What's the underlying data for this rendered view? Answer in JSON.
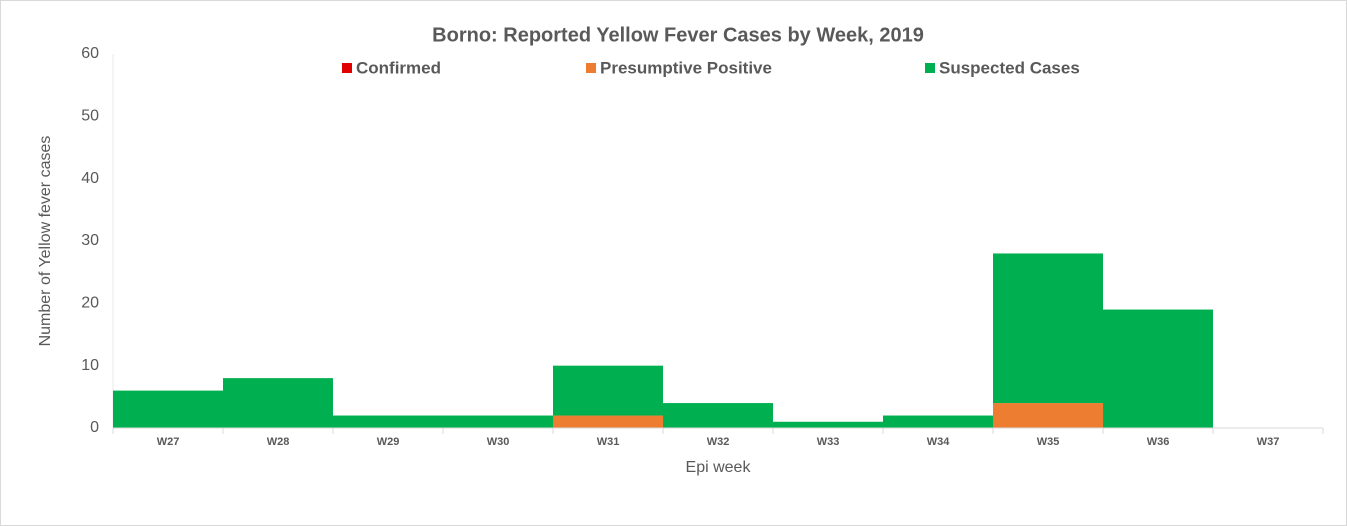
{
  "chart_data": {
    "type": "bar",
    "stacked": true,
    "title": "Borno: Reported Yellow Fever Cases by Week, 2019",
    "x_label": "Epi week",
    "y_label": "Number of Yellow fever cases",
    "categories": [
      "W27",
      "W28",
      "W29",
      "W30",
      "W31",
      "W32",
      "W33",
      "W34",
      "W35",
      "W36",
      "W37"
    ],
    "series": [
      {
        "name": "Confirmed",
        "color": "#e00000",
        "values": [
          0,
          0,
          0,
          0,
          0,
          0,
          0,
          0,
          0,
          0,
          0
        ]
      },
      {
        "name": "Presumptive Positive",
        "color": "#ed7d31",
        "values": [
          0,
          0,
          0,
          0,
          2,
          0,
          0,
          0,
          4,
          0,
          0
        ]
      },
      {
        "name": "Suspected Cases",
        "color": "#00b050",
        "values": [
          6,
          8,
          2,
          2,
          8,
          4,
          1,
          2,
          24,
          19,
          0
        ]
      }
    ],
    "ylim": [
      0,
      60
    ],
    "yticks": [
      0,
      10,
      20,
      30,
      40,
      50,
      60
    ],
    "grid": false
  }
}
